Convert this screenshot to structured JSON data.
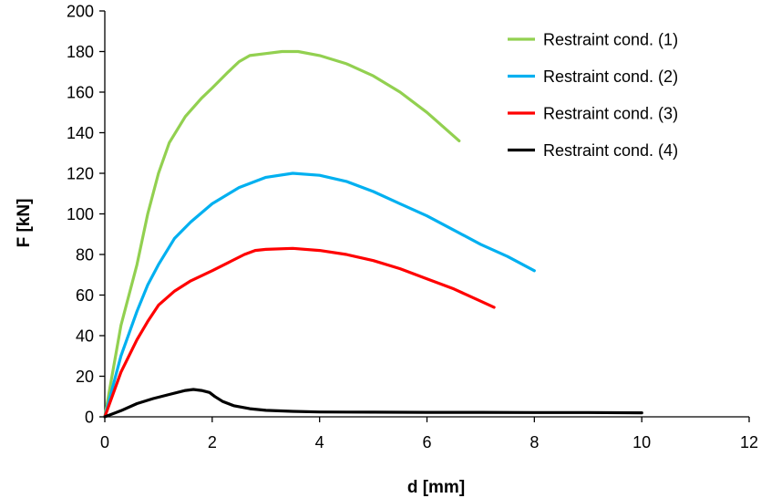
{
  "chart_data": {
    "type": "line",
    "title": "",
    "xlabel": "d [mm]",
    "ylabel": "F [kN]",
    "xlim": [
      0,
      12
    ],
    "ylim": [
      0,
      200
    ],
    "xticks": [
      0,
      2,
      4,
      6,
      8,
      10,
      12
    ],
    "yticks": [
      0,
      20,
      40,
      60,
      80,
      100,
      120,
      140,
      160,
      180,
      200
    ],
    "grid": false,
    "legend_position": "top-right",
    "series": [
      {
        "name": "Restraint cond. (1)",
        "color": "#92D050",
        "x": [
          0,
          0.3,
          0.6,
          0.8,
          1.0,
          1.2,
          1.5,
          1.8,
          2.0,
          2.3,
          2.5,
          2.7,
          3.0,
          3.3,
          3.6,
          4.0,
          4.5,
          5.0,
          5.5,
          6.0,
          6.6
        ],
        "y": [
          0,
          45,
          75,
          100,
          120,
          135,
          148,
          157,
          162,
          170,
          175,
          178,
          179,
          180,
          180,
          178,
          174,
          168,
          160,
          150,
          136
        ]
      },
      {
        "name": "Restraint cond. (2)",
        "color": "#00B0F0",
        "x": [
          0,
          0.3,
          0.6,
          0.8,
          1.0,
          1.3,
          1.6,
          2.0,
          2.5,
          3.0,
          3.5,
          4.0,
          4.5,
          5.0,
          5.5,
          6.0,
          6.5,
          7.0,
          7.5,
          8.0
        ],
        "y": [
          0,
          30,
          52,
          65,
          75,
          88,
          96,
          105,
          113,
          118,
          120,
          119,
          116,
          111,
          105,
          99,
          92,
          85,
          79,
          72
        ]
      },
      {
        "name": "Restraint cond. (3)",
        "color": "#FF0000",
        "x": [
          0,
          0.3,
          0.6,
          0.8,
          1.0,
          1.3,
          1.6,
          2.0,
          2.3,
          2.6,
          2.8,
          3.0,
          3.5,
          4.0,
          4.5,
          5.0,
          5.5,
          6.0,
          6.5,
          7.0,
          7.25
        ],
        "y": [
          0,
          22,
          38,
          47,
          55,
          62,
          67,
          72,
          76,
          80,
          82,
          82.5,
          83,
          82,
          80,
          77,
          73,
          68,
          63,
          57,
          54
        ]
      },
      {
        "name": "Restraint cond. (4)",
        "color": "#000000",
        "x": [
          0,
          0.3,
          0.6,
          0.9,
          1.2,
          1.5,
          1.65,
          1.8,
          1.95,
          2.05,
          2.2,
          2.4,
          2.7,
          3.0,
          3.5,
          4.0,
          5.0,
          6.0,
          7.0,
          8.0,
          9.0,
          10.0
        ],
        "y": [
          0,
          3,
          6.5,
          9,
          11,
          13,
          13.5,
          13,
          12,
          10,
          7.5,
          5.5,
          4,
          3.2,
          2.7,
          2.4,
          2.3,
          2.2,
          2.2,
          2.1,
          2.1,
          2.0
        ]
      }
    ]
  }
}
